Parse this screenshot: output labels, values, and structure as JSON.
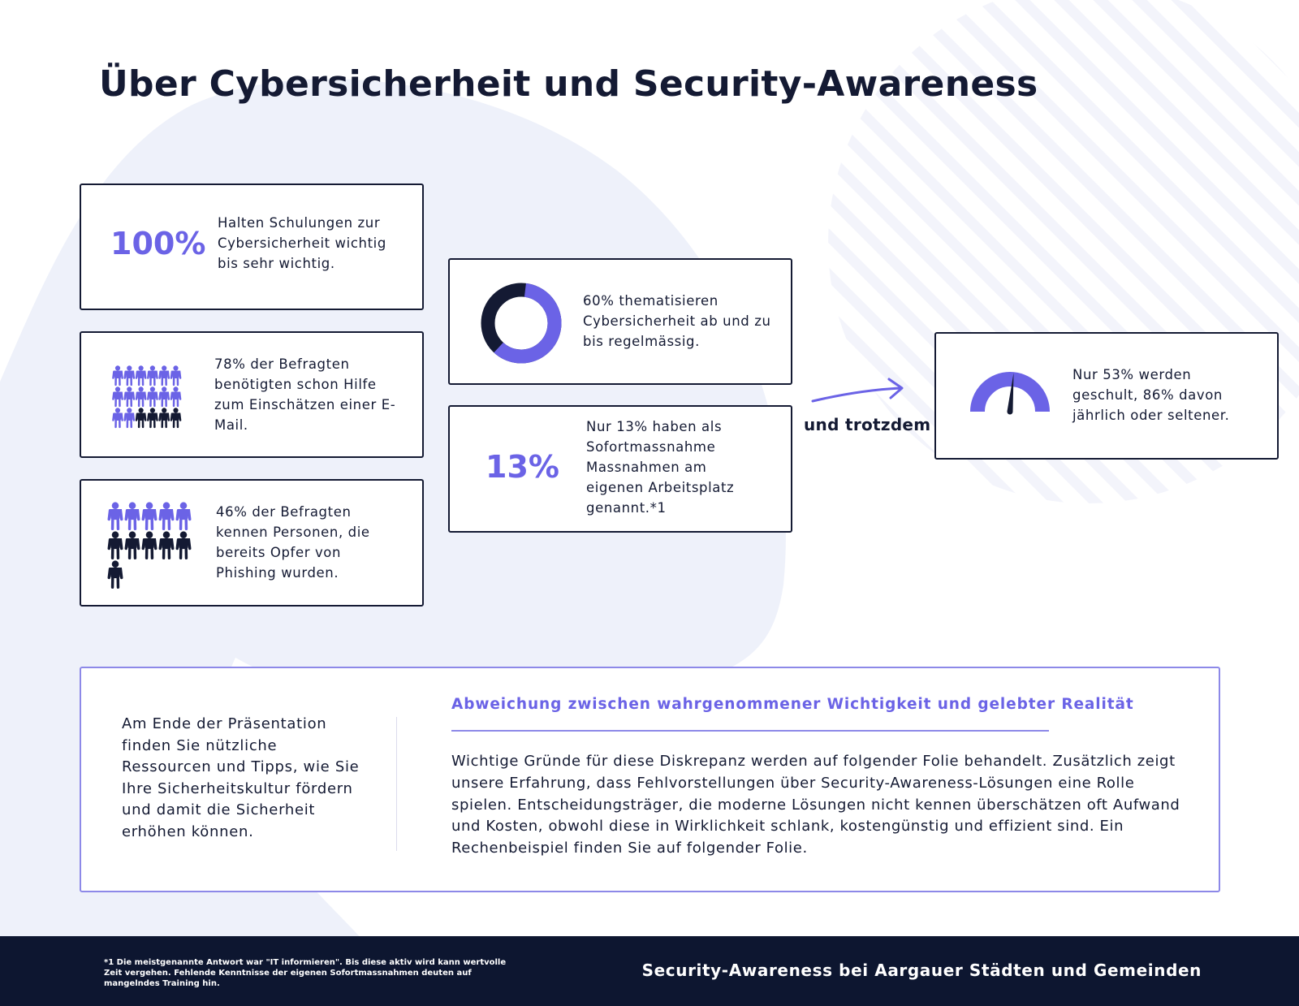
{
  "title": "Über Cybersicherheit und Security-Awareness",
  "colors": {
    "accent": "#6b63e6",
    "dark": "#141a33",
    "footer_bg": "#0d1630",
    "blob": "#eef1fa"
  },
  "stats": {
    "training_importance": {
      "percent": "100%",
      "text": "Halten Schulungen zur Cybersicherheit wichtig bis sehr wichtig."
    },
    "email_help": {
      "text": "78% der Befragten benötigten schon Hilfe zum Einschätzen einer E-Mail.",
      "icon": "people-grid-icon"
    },
    "phishing_victims": {
      "text": "46% der Befragten kennen Personen, die bereits Opfer von Phishing wurden.",
      "icon": "people-grid-icon"
    },
    "discussion": {
      "text": "60% thematisieren Cybersicherheit ab und zu bis regelmässig.",
      "value": 60,
      "icon": "donut-chart-icon"
    },
    "immediate_measures": {
      "percent": "13%",
      "text": "Nur 13% haben als Sofortmassnahme Massnahmen am eigenen Arbeitsplatz genannt.*1"
    },
    "trained": {
      "text": "Nur 53% werden geschult, 86% davon jährlich oder seltener.",
      "value": 53,
      "icon": "gauge-icon"
    }
  },
  "connector": {
    "label": "und trotzdem",
    "icon": "arrow-right-icon"
  },
  "bottom": {
    "left_text": "Am Ende der Präsentation finden Sie nützliche Ressourcen und Tipps, wie Sie Ihre Sicherheitskultur fördern und damit die Sicherheit erhöhen können.",
    "heading": "Abweichung zwischen wahrgenommener Wichtigkeit und gelebter Realität",
    "body": "Wichtige Gründe für diese Diskrepanz werden auf folgender Folie behandelt. Zusätzlich zeigt unsere Erfahrung, dass Fehlvorstellungen über Security-Awareness-Lösungen eine Rolle spielen. Entscheidungsträger, die moderne Lösungen nicht kennen überschätzen oft Aufwand und Kosten, obwohl diese in Wirklichkeit schlank, kostengünstig und effizient sind. Ein Rechenbeispiel finden Sie auf folgender Folie."
  },
  "footer": {
    "footnote": "*1 Die meistgenannte Antwort war \"IT informieren\". Bis diese aktiv wird kann wertvolle Zeit vergehen. Fehlende Kenntnisse der eigenen Sofortmassnahmen deuten auf mangelndes Training hin.",
    "title": "Security-Awareness bei Aargauer Städten und Gemeinden"
  }
}
